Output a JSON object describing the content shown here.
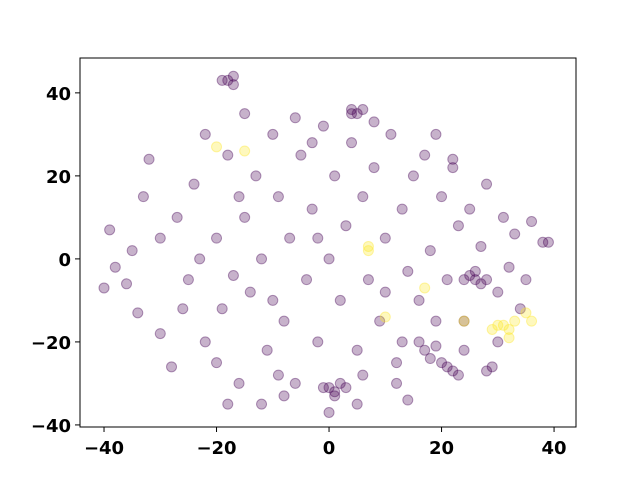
{
  "chart_data": {
    "type": "scatter",
    "xlim": [
      -44.27,
      43.9
    ],
    "ylim": [
      -40.5,
      48.4
    ],
    "xticks": [
      {
        "value": -40,
        "label": "−40"
      },
      {
        "value": -20,
        "label": "−20"
      },
      0,
      20,
      40
    ],
    "yticks": [
      {
        "value": -40,
        "label": "−40"
      },
      {
        "value": -20,
        "label": "−20"
      },
      0,
      20,
      40
    ],
    "series": [
      {
        "color": "#440154",
        "x": [
          -18,
          -17,
          -19,
          -17,
          4,
          5,
          6,
          4,
          0,
          1,
          2,
          -1,
          1,
          3,
          25,
          26,
          27,
          24,
          26,
          28,
          17,
          18,
          19,
          16,
          20,
          22,
          23,
          21,
          28,
          29,
          38,
          39,
          -40,
          -39,
          -38,
          -35,
          -33,
          -34,
          -32,
          -30,
          -28,
          -27,
          -25,
          -24,
          -22,
          -22,
          -20,
          -19,
          -18,
          -16,
          -15,
          -14,
          -13,
          -12,
          -11,
          -10,
          -9,
          -8,
          -7,
          -6,
          -5,
          -4,
          -3,
          -2,
          -1,
          0,
          1,
          2,
          3,
          4,
          5,
          6,
          7,
          8,
          9,
          10,
          11,
          12,
          13,
          14,
          15,
          16,
          17,
          18,
          19,
          20,
          21,
          22,
          23,
          24,
          25,
          27,
          28,
          30,
          31,
          32,
          33,
          35,
          36,
          34,
          30,
          -36,
          -30,
          -26,
          -23,
          -17,
          -16,
          -10,
          -9,
          -6,
          -3,
          -15,
          -20,
          0,
          5,
          -18,
          12,
          14,
          22,
          19,
          8,
          -8,
          24,
          13,
          10,
          -2,
          6,
          -12
        ],
        "values": [
          43,
          44,
          43,
          42,
          36,
          35,
          36,
          35,
          -31,
          -32,
          -30,
          -31,
          -33,
          -31,
          -4,
          -5,
          -6,
          -5,
          -3,
          -5,
          -22,
          -24,
          -21,
          -20,
          -25,
          -27,
          -28,
          -26,
          -27,
          -26,
          4,
          4,
          -7,
          7,
          -2,
          2,
          15,
          -13,
          24,
          -18,
          -26,
          10,
          -5,
          18,
          -20,
          30,
          5,
          -12,
          25,
          -30,
          10,
          -8,
          20,
          0,
          -22,
          30,
          15,
          -15,
          5,
          -30,
          25,
          -5,
          12,
          -20,
          32,
          0,
          20,
          -10,
          8,
          28,
          -22,
          15,
          -5,
          22,
          -15,
          5,
          30,
          -25,
          12,
          -3,
          20,
          -10,
          25,
          2,
          -15,
          15,
          -5,
          22,
          8,
          -15,
          12,
          3,
          18,
          -8,
          10,
          -2,
          6,
          -5,
          9,
          -12,
          -20,
          -6,
          5,
          -12,
          0,
          -4,
          15,
          -10,
          -28,
          34,
          28,
          35,
          -25,
          -37,
          -35,
          -35,
          -30,
          -34,
          24,
          30,
          33,
          -33,
          -22,
          -20,
          -8,
          5,
          -28,
          -35
        ]
      },
      {
        "color": "#fde725",
        "x": [
          -20,
          7,
          7,
          10,
          17,
          30,
          31,
          32,
          33,
          35,
          36,
          32,
          29,
          24,
          -15
        ],
        "values": [
          27,
          3,
          2,
          -14,
          -7,
          -16,
          -16,
          -17,
          -15,
          -13,
          -15,
          -19,
          -17,
          -15,
          26
        ]
      }
    ]
  }
}
